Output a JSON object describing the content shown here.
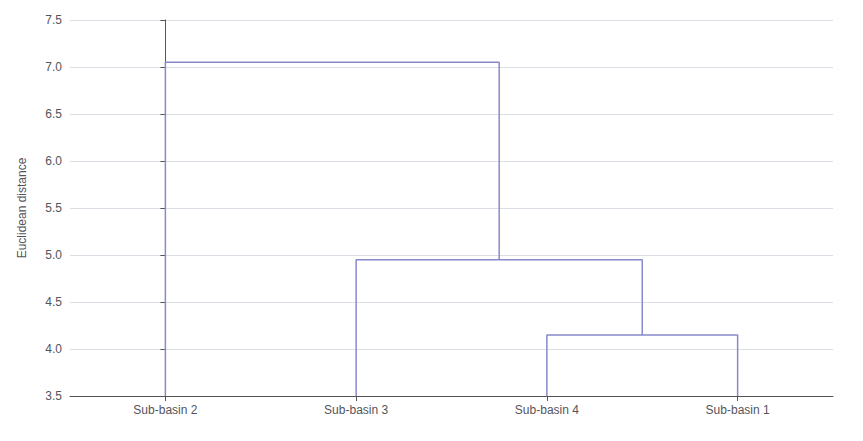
{
  "chart_data": {
    "type": "dendrogram",
    "categories": [
      "Sub-basin 2",
      "Sub-basin 3",
      "Sub-basin 4",
      "Sub-basin 1"
    ],
    "merges": [
      {
        "left": [
          "Sub-basin 4"
        ],
        "right": [
          "Sub-basin 1"
        ],
        "height": 4.15
      },
      {
        "left": [
          "Sub-basin 3"
        ],
        "right": [
          "Sub-basin 4",
          "Sub-basin 1"
        ],
        "height": 4.95
      },
      {
        "left": [
          "Sub-basin 2"
        ],
        "right": [
          "Sub-basin 3",
          "Sub-basin 4",
          "Sub-basin 1"
        ],
        "height": 7.05
      }
    ],
    "ylabel": "Euclidean distance",
    "ylim": [
      3.5,
      7.5
    ],
    "yticks": [
      3.5,
      {
        "value": 4,
        "label": "4.0"
      },
      4.5,
      {
        "value": 5,
        "label": "5.0"
      },
      5.5,
      {
        "value": 6,
        "label": "6.0"
      },
      6.5,
      {
        "value": 7,
        "label": "7.0"
      },
      7.5
    ],
    "color": "#8888cc",
    "grid": true
  }
}
